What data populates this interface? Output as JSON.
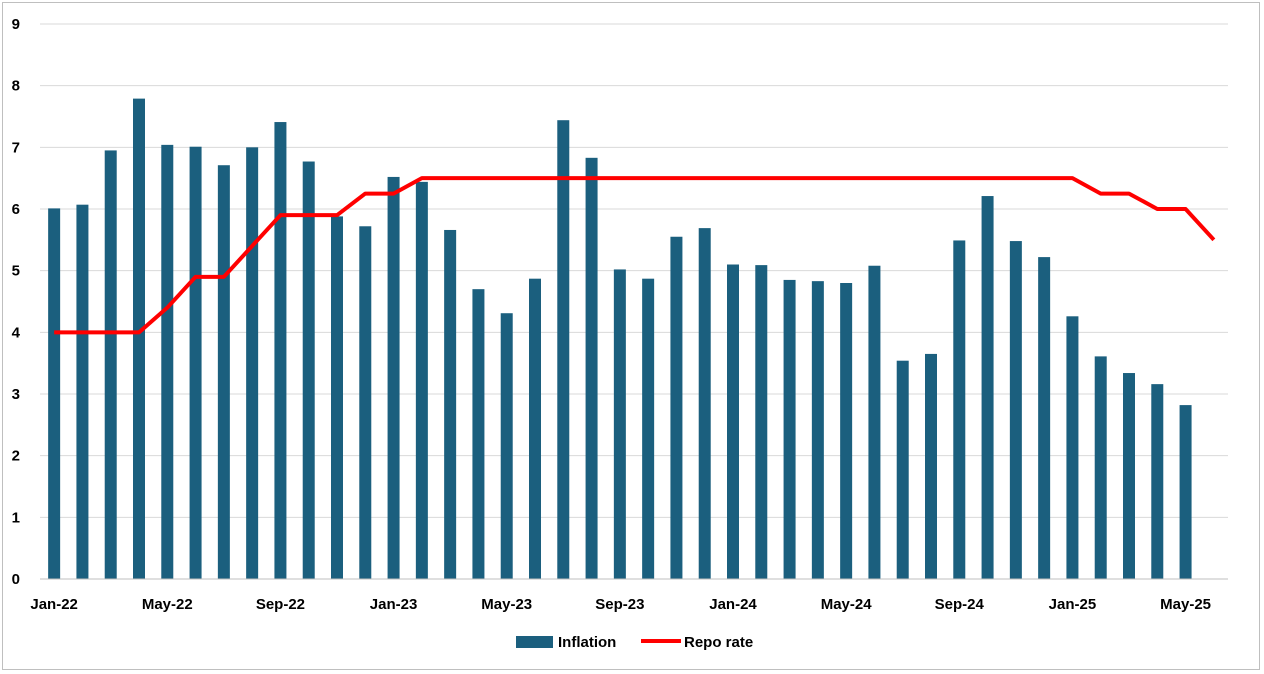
{
  "chart_data": {
    "type": "bar",
    "categories": [
      "Jan-22",
      "Feb-22",
      "Mar-22",
      "Apr-22",
      "May-22",
      "Jun-22",
      "Jul-22",
      "Aug-22",
      "Sep-22",
      "Oct-22",
      "Nov-22",
      "Dec-22",
      "Jan-23",
      "Feb-23",
      "Mar-23",
      "Apr-23",
      "May-23",
      "Jun-23",
      "Jul-23",
      "Aug-23",
      "Sep-23",
      "Oct-23",
      "Nov-23",
      "Dec-23",
      "Jan-24",
      "Feb-24",
      "Mar-24",
      "Apr-24",
      "May-24",
      "Jun-24",
      "Jul-24",
      "Aug-24",
      "Sep-24",
      "Oct-24",
      "Nov-24",
      "Dec-24",
      "Jan-25",
      "Feb-25",
      "Mar-25",
      "Apr-25",
      "May-25",
      "Jun-25"
    ],
    "x_tick_labels": [
      "Jan-22",
      "May-22",
      "Sep-22",
      "Jan-23",
      "May-23",
      "Sep-23",
      "Jan-24",
      "May-24",
      "Sep-24",
      "Jan-25",
      "May-25"
    ],
    "series": [
      {
        "name": "Inflation",
        "type": "bar",
        "color": "#1b5f7e",
        "values": [
          6.01,
          6.07,
          6.95,
          7.79,
          7.04,
          7.01,
          6.71,
          7.0,
          7.41,
          6.77,
          5.88,
          5.72,
          6.52,
          6.44,
          5.66,
          4.7,
          4.31,
          4.87,
          7.44,
          6.83,
          5.02,
          4.87,
          5.55,
          5.69,
          5.1,
          5.09,
          4.85,
          4.83,
          4.8,
          5.08,
          3.54,
          3.65,
          5.49,
          6.21,
          5.48,
          5.22,
          4.26,
          3.61,
          3.34,
          3.16,
          2.82,
          null
        ]
      },
      {
        "name": "Repo rate",
        "type": "line",
        "color": "#ff0000",
        "values": [
          4.0,
          4.0,
          4.0,
          4.0,
          4.4,
          4.9,
          4.9,
          5.4,
          5.9,
          5.9,
          5.9,
          6.25,
          6.25,
          6.5,
          6.5,
          6.5,
          6.5,
          6.5,
          6.5,
          6.5,
          6.5,
          6.5,
          6.5,
          6.5,
          6.5,
          6.5,
          6.5,
          6.5,
          6.5,
          6.5,
          6.5,
          6.5,
          6.5,
          6.5,
          6.5,
          6.5,
          6.5,
          6.25,
          6.25,
          6.0,
          6.0,
          5.5
        ]
      }
    ],
    "ylim": [
      0,
      9
    ],
    "yticks": [
      0,
      1,
      2,
      3,
      4,
      5,
      6,
      7,
      8,
      9
    ],
    "grid": true,
    "legend_position": "bottom",
    "title": "",
    "xlabel": "",
    "ylabel": ""
  },
  "legend": {
    "inflation_label": "Inflation",
    "repo_label": "Repo rate"
  }
}
